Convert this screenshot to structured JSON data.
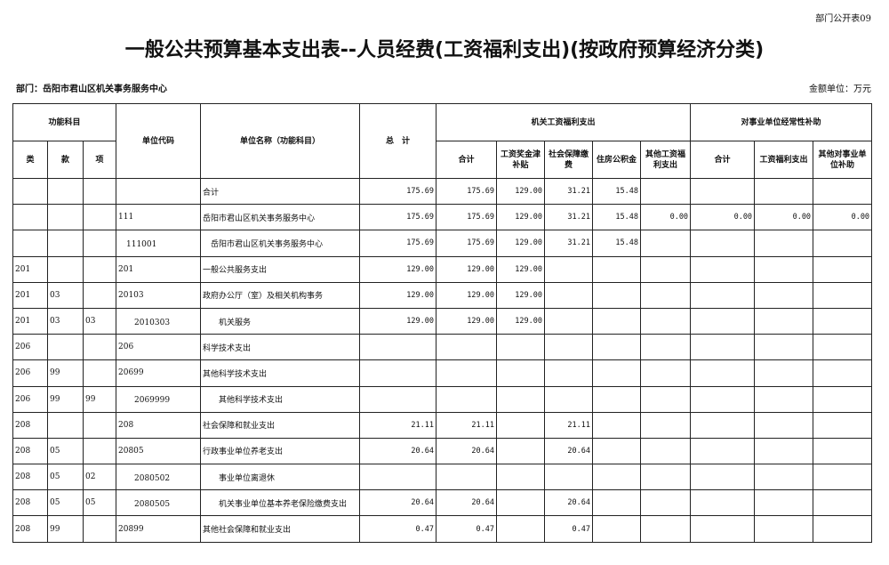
{
  "form_code": "部门公开表09",
  "title": "一般公共预算基本支出表--人员经费(工资福利支出)(按政府预算经济分类)",
  "department": "部门：岳阳市君山区机关事务服务中心",
  "unit": "金额单位：万元",
  "headers": {
    "func": "功能科目",
    "lei": "类",
    "kuan": "款",
    "xiang": "项",
    "code": "单位代码",
    "name": "单位名称（功能科目）",
    "total": "总　计",
    "group1": "机关工资福利支出",
    "g1": [
      "合计",
      "工资奖金津补贴",
      "社会保障缴费",
      "住房公积金",
      "其他工资福利支出"
    ],
    "group2": "对事业单位经常性补助",
    "g2": [
      "合计",
      "工资福利支出",
      "其他对事业单位补助"
    ]
  },
  "rows": [
    [
      "",
      "",
      "",
      "",
      "合计",
      "175.69",
      "175.69",
      "129.00",
      "31.21",
      "15.48",
      "",
      "",
      "",
      ""
    ],
    [
      "",
      "",
      "",
      "111",
      "岳阳市君山区机关事务服务中心",
      "175.69",
      "175.69",
      "129.00",
      "31.21",
      "15.48",
      "0.00",
      "0.00",
      "0.00",
      "0.00"
    ],
    [
      "",
      "",
      "",
      "　111001",
      "　岳阳市君山区机关事务服务中心",
      "175.69",
      "175.69",
      "129.00",
      "31.21",
      "15.48",
      "",
      "",
      "",
      ""
    ],
    [
      "201",
      "",
      "",
      "201",
      "一般公共服务支出",
      "129.00",
      "129.00",
      "129.00",
      "",
      "",
      "",
      "",
      "",
      ""
    ],
    [
      "201",
      "03",
      "",
      "20103",
      "政府办公厅（室）及相关机构事务",
      "129.00",
      "129.00",
      "129.00",
      "",
      "",
      "",
      "",
      "",
      ""
    ],
    [
      "201",
      "03",
      "03",
      "　　2010303",
      "　　机关服务",
      "129.00",
      "129.00",
      "129.00",
      "",
      "",
      "",
      "",
      "",
      ""
    ],
    [
      "206",
      "",
      "",
      "206",
      "科学技术支出",
      "",
      "",
      "",
      "",
      "",
      "",
      "",
      "",
      ""
    ],
    [
      "206",
      "99",
      "",
      "20699",
      "其他科学技术支出",
      "",
      "",
      "",
      "",
      "",
      "",
      "",
      "",
      ""
    ],
    [
      "206",
      "99",
      "99",
      "　　2069999",
      "　　其他科学技术支出",
      "",
      "",
      "",
      "",
      "",
      "",
      "",
      "",
      ""
    ],
    [
      "208",
      "",
      "",
      "208",
      "社会保障和就业支出",
      "21.11",
      "21.11",
      "",
      "21.11",
      "",
      "",
      "",
      "",
      ""
    ],
    [
      "208",
      "05",
      "",
      "20805",
      "行政事业单位养老支出",
      "20.64",
      "20.64",
      "",
      "20.64",
      "",
      "",
      "",
      "",
      ""
    ],
    [
      "208",
      "05",
      "02",
      "　　2080502",
      "　　事业单位离退休",
      "",
      "",
      "",
      "",
      "",
      "",
      "",
      "",
      ""
    ],
    [
      "208",
      "05",
      "05",
      "　　2080505",
      "　　机关事业单位基本养老保险缴费支出",
      "20.64",
      "20.64",
      "",
      "20.64",
      "",
      "",
      "",
      "",
      ""
    ],
    [
      "208",
      "99",
      "",
      "20899",
      "其他社会保障和就业支出",
      "0.47",
      "0.47",
      "",
      "0.47",
      "",
      "",
      "",
      "",
      ""
    ]
  ]
}
